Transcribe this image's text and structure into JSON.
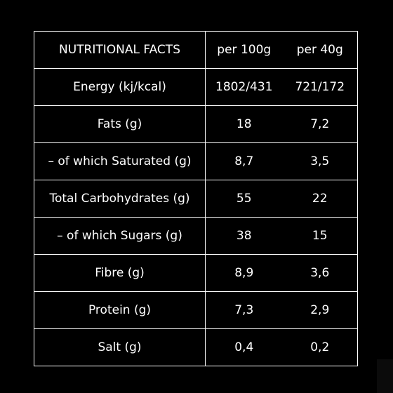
{
  "table": {
    "header": {
      "label": "NUTRITIONAL FACTS",
      "per_100g": "per 100g",
      "per_40g": "per 40g"
    },
    "rows": [
      {
        "label": "Energy (kj/kcal)",
        "per_100g": "1802/431",
        "per_40g": "721/172"
      },
      {
        "label": "Fats (g)",
        "per_100g": "18",
        "per_40g": "7,2"
      },
      {
        "label": "– of which Saturated (g)",
        "per_100g": "8,7",
        "per_40g": "3,5"
      },
      {
        "label": "Total Carbohydrates (g)",
        "per_100g": "55",
        "per_40g": "22"
      },
      {
        "label": "– of which Sugars (g)",
        "per_100g": "38",
        "per_40g": "15"
      },
      {
        "label": "Fibre (g)",
        "per_100g": "8,9",
        "per_40g": "3,6"
      },
      {
        "label": "Protein (g)",
        "per_100g": "7,3",
        "per_40g": "2,9"
      },
      {
        "label": "Salt (g)",
        "per_100g": "0,4",
        "per_40g": "0,2"
      }
    ]
  },
  "colors": {
    "background": "#000000",
    "text": "#ffffff",
    "border": "#ffffff"
  }
}
